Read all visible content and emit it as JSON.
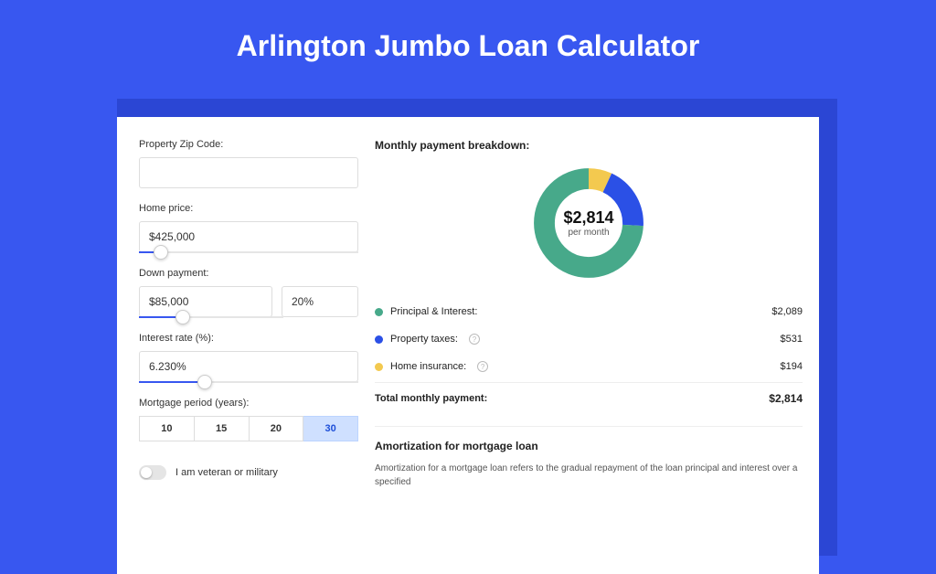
{
  "page": {
    "title": "Arlington Jumbo Loan Calculator",
    "background_color": "#3857f0",
    "shadow_color": "#2b46d4"
  },
  "form": {
    "zip": {
      "label": "Property Zip Code:",
      "value": ""
    },
    "home_price": {
      "label": "Home price:",
      "value": "$425,000",
      "slider_pct": 10
    },
    "down_payment": {
      "label": "Down payment:",
      "amount": "$85,000",
      "pct": "20%",
      "slider_pct": 20
    },
    "rate": {
      "label": "Interest rate (%):",
      "value": "6.230%",
      "slider_pct": 30
    },
    "period": {
      "label": "Mortgage period (years):",
      "options": [
        "10",
        "15",
        "20",
        "30"
      ],
      "selected": "30"
    },
    "veteran": {
      "label": "I am veteran or military",
      "checked": false
    }
  },
  "breakdown": {
    "title": "Monthly payment breakdown:",
    "center_amount": "$2,814",
    "center_sub": "per month",
    "items": [
      {
        "color": "#47a98a",
        "label": "Principal & Interest:",
        "value": "$2,089",
        "info": false,
        "frac": 0.742
      },
      {
        "color": "#2b50e6",
        "label": "Property taxes:",
        "value": "$531",
        "info": true,
        "frac": 0.189
      },
      {
        "color": "#f3c94f",
        "label": "Home insurance:",
        "value": "$194",
        "info": true,
        "frac": 0.069
      }
    ],
    "total_label": "Total monthly payment:",
    "total_value": "$2,814"
  },
  "amortization": {
    "title": "Amortization for mortgage loan",
    "body": "Amortization for a mortgage loan refers to the gradual repayment of the loan principal and interest over a specified"
  }
}
